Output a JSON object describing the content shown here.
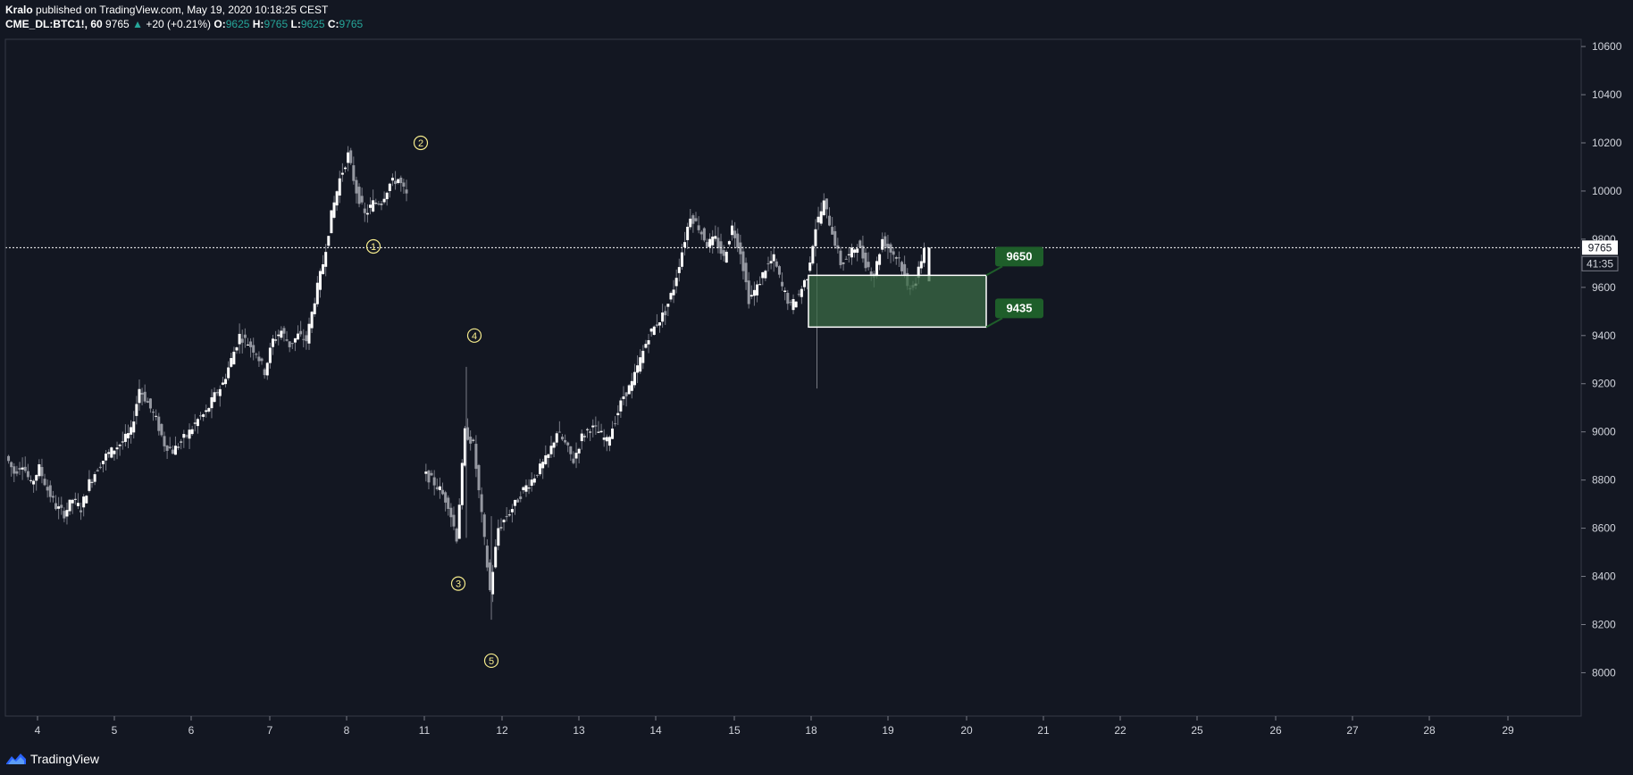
{
  "header": {
    "author": "Kralo",
    "published_text": "published on TradingView.com, May 19, 2020 10:18:25 CEST",
    "symbol": "CME_DL:BTC1!, 60",
    "last": "9765",
    "arrow": "▲",
    "change": "+20 (+0.21%)",
    "o_label": "O:",
    "o_value": "9625",
    "h_label": "H:",
    "h_value": "9765",
    "l_label": "L:",
    "l_value": "9625",
    "c_label": "C:",
    "c_value": "9765"
  },
  "footer": {
    "brand": "TradingView",
    "logo_icon": "tradingview-logo-icon"
  },
  "colors": {
    "background": "#131722",
    "candle": "#d1d4dc",
    "wick": "#787b86",
    "label_green": "#1e5e2a",
    "zone_fill": "#3b6b45",
    "wave_label": "#f5eb8c"
  },
  "chart_data": {
    "type": "candlestick",
    "y_axis": {
      "ticks": [
        8000,
        8200,
        8400,
        8600,
        8800,
        9000,
        9200,
        9400,
        9600,
        9800,
        10000,
        10200,
        10400,
        10600
      ],
      "range": [
        7820,
        10630
      ]
    },
    "x_axis": {
      "tick_labels": [
        "4",
        "5",
        "6",
        "7",
        "8",
        "11",
        "12",
        "13",
        "14",
        "15",
        "18",
        "19",
        "20",
        "21",
        "22",
        "25",
        "26",
        "27",
        "28",
        "29"
      ]
    },
    "price_line": {
      "value": 9765,
      "label": "9765"
    },
    "countdown": "41:35",
    "zone": {
      "top": 9650,
      "bottom": 9435,
      "top_label": "9650",
      "bottom_label": "9435"
    },
    "wave_labels": [
      {
        "label": "1",
        "price": 9770
      },
      {
        "label": "2",
        "price": 10200
      },
      {
        "label": "3",
        "price": 8370
      },
      {
        "label": "4",
        "price": 9400
      },
      {
        "label": "5",
        "price": 8050
      }
    ],
    "price_path": [
      [
        0,
        8900
      ],
      [
        1,
        8830
      ],
      [
        2,
        8870
      ],
      [
        3,
        8780
      ],
      [
        4,
        8850
      ],
      [
        5,
        8760
      ],
      [
        6,
        8690
      ],
      [
        7,
        8660
      ],
      [
        8,
        8720
      ],
      [
        9,
        8680
      ],
      [
        10,
        8790
      ],
      [
        11,
        8850
      ],
      [
        12,
        8900
      ],
      [
        13,
        8930
      ],
      [
        14,
        8960
      ],
      [
        15,
        9000
      ],
      [
        16,
        9180
      ],
      [
        17,
        9120
      ],
      [
        18,
        9050
      ],
      [
        19,
        8950
      ],
      [
        20,
        8920
      ],
      [
        21,
        8960
      ],
      [
        22,
        9000
      ],
      [
        23,
        9050
      ],
      [
        24,
        9080
      ],
      [
        25,
        9150
      ],
      [
        26,
        9200
      ],
      [
        27,
        9300
      ],
      [
        28,
        9400
      ],
      [
        29,
        9370
      ],
      [
        30,
        9330
      ],
      [
        31,
        9250
      ],
      [
        32,
        9380
      ],
      [
        33,
        9420
      ],
      [
        34,
        9360
      ],
      [
        35,
        9400
      ],
      [
        36,
        9380
      ],
      [
        37,
        9550
      ],
      [
        38,
        9700
      ],
      [
        39,
        9900
      ],
      [
        40,
        10050
      ],
      [
        41,
        10150
      ],
      [
        42,
        10000
      ],
      [
        43,
        9900
      ],
      [
        44,
        9950
      ],
      [
        45,
        9960
      ],
      [
        46,
        10030
      ],
      [
        47,
        10050
      ],
      [
        48,
        9980
      ],
      [
        50,
        8830
      ],
      [
        51,
        8800
      ],
      [
        52,
        8760
      ],
      [
        53,
        8700
      ],
      [
        54,
        8560
      ],
      [
        55,
        9000
      ],
      [
        56,
        8950
      ],
      [
        57,
        8650
      ],
      [
        58,
        8340
      ],
      [
        59,
        8600
      ],
      [
        60,
        8650
      ],
      [
        61,
        8700
      ],
      [
        62,
        8760
      ],
      [
        63,
        8800
      ],
      [
        64,
        8850
      ],
      [
        65,
        8900
      ],
      [
        66,
        9000
      ],
      [
        67,
        8950
      ],
      [
        68,
        8880
      ],
      [
        69,
        8980
      ],
      [
        70,
        9020
      ],
      [
        71,
        9000
      ],
      [
        72,
        8960
      ],
      [
        73,
        9050
      ],
      [
        74,
        9150
      ],
      [
        75,
        9200
      ],
      [
        76,
        9300
      ],
      [
        77,
        9400
      ],
      [
        78,
        9450
      ],
      [
        79,
        9500
      ],
      [
        80,
        9600
      ],
      [
        81,
        9750
      ],
      [
        82,
        9900
      ],
      [
        83,
        9850
      ],
      [
        84,
        9780
      ],
      [
        85,
        9800
      ],
      [
        86,
        9720
      ],
      [
        87,
        9850
      ],
      [
        88,
        9750
      ],
      [
        89,
        9550
      ],
      [
        90,
        9600
      ],
      [
        91,
        9680
      ],
      [
        92,
        9720
      ],
      [
        93,
        9600
      ],
      [
        94,
        9520
      ],
      [
        95,
        9570
      ],
      [
        96,
        9650
      ],
      [
        97,
        9850
      ],
      [
        98,
        9950
      ],
      [
        99,
        9830
      ],
      [
        100,
        9700
      ],
      [
        101,
        9730
      ],
      [
        102,
        9780
      ],
      [
        103,
        9700
      ],
      [
        104,
        9650
      ],
      [
        105,
        9800
      ],
      [
        106,
        9750
      ],
      [
        107,
        9720
      ],
      [
        108,
        9600
      ],
      [
        109,
        9620
      ],
      [
        110,
        9765
      ]
    ],
    "last_candle": {
      "open": 9625,
      "high": 9765,
      "low": 9625,
      "close": 9765
    }
  }
}
